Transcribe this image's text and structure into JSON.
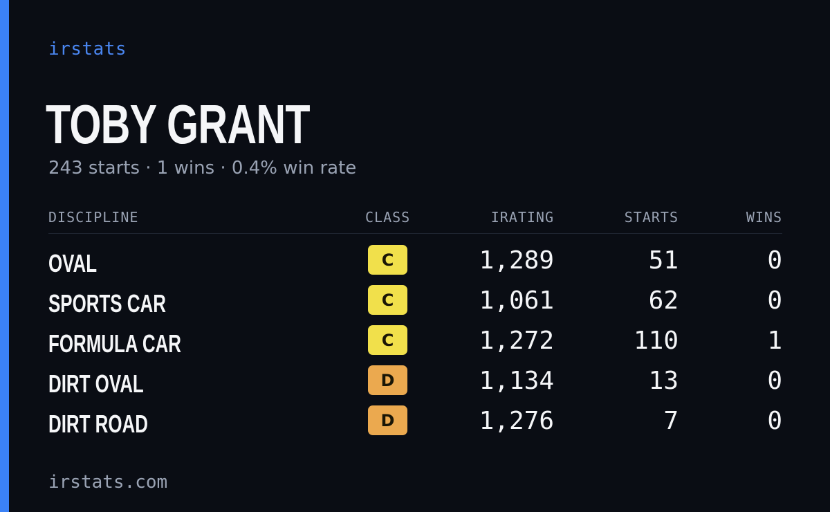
{
  "brand": "irstats",
  "driver": {
    "name": "TOBY GRANT",
    "starts": "243 starts",
    "wins": "1 wins",
    "win_rate": "0.4% win rate",
    "separator": "·"
  },
  "table": {
    "headers": {
      "discipline": "DISCIPLINE",
      "class": "CLASS",
      "irating": "IRATING",
      "starts": "STARTS",
      "wins": "WINS"
    },
    "rows": [
      {
        "discipline": "OVAL",
        "class": "C",
        "irating": "1,289",
        "starts": "51",
        "wins": "0"
      },
      {
        "discipline": "SPORTS CAR",
        "class": "C",
        "irating": "1,061",
        "starts": "62",
        "wins": "0"
      },
      {
        "discipline": "FORMULA CAR",
        "class": "C",
        "irating": "1,272",
        "starts": "110",
        "wins": "1"
      },
      {
        "discipline": "DIRT OVAL",
        "class": "D",
        "irating": "1,134",
        "starts": "13",
        "wins": "0"
      },
      {
        "discipline": "DIRT ROAD",
        "class": "D",
        "irating": "1,276",
        "starts": "7",
        "wins": "0"
      }
    ]
  },
  "class_colors": {
    "C": "#f1e04b",
    "D": "#eba94f"
  },
  "accent_color": "#3b82f6",
  "footer": "irstats.com"
}
